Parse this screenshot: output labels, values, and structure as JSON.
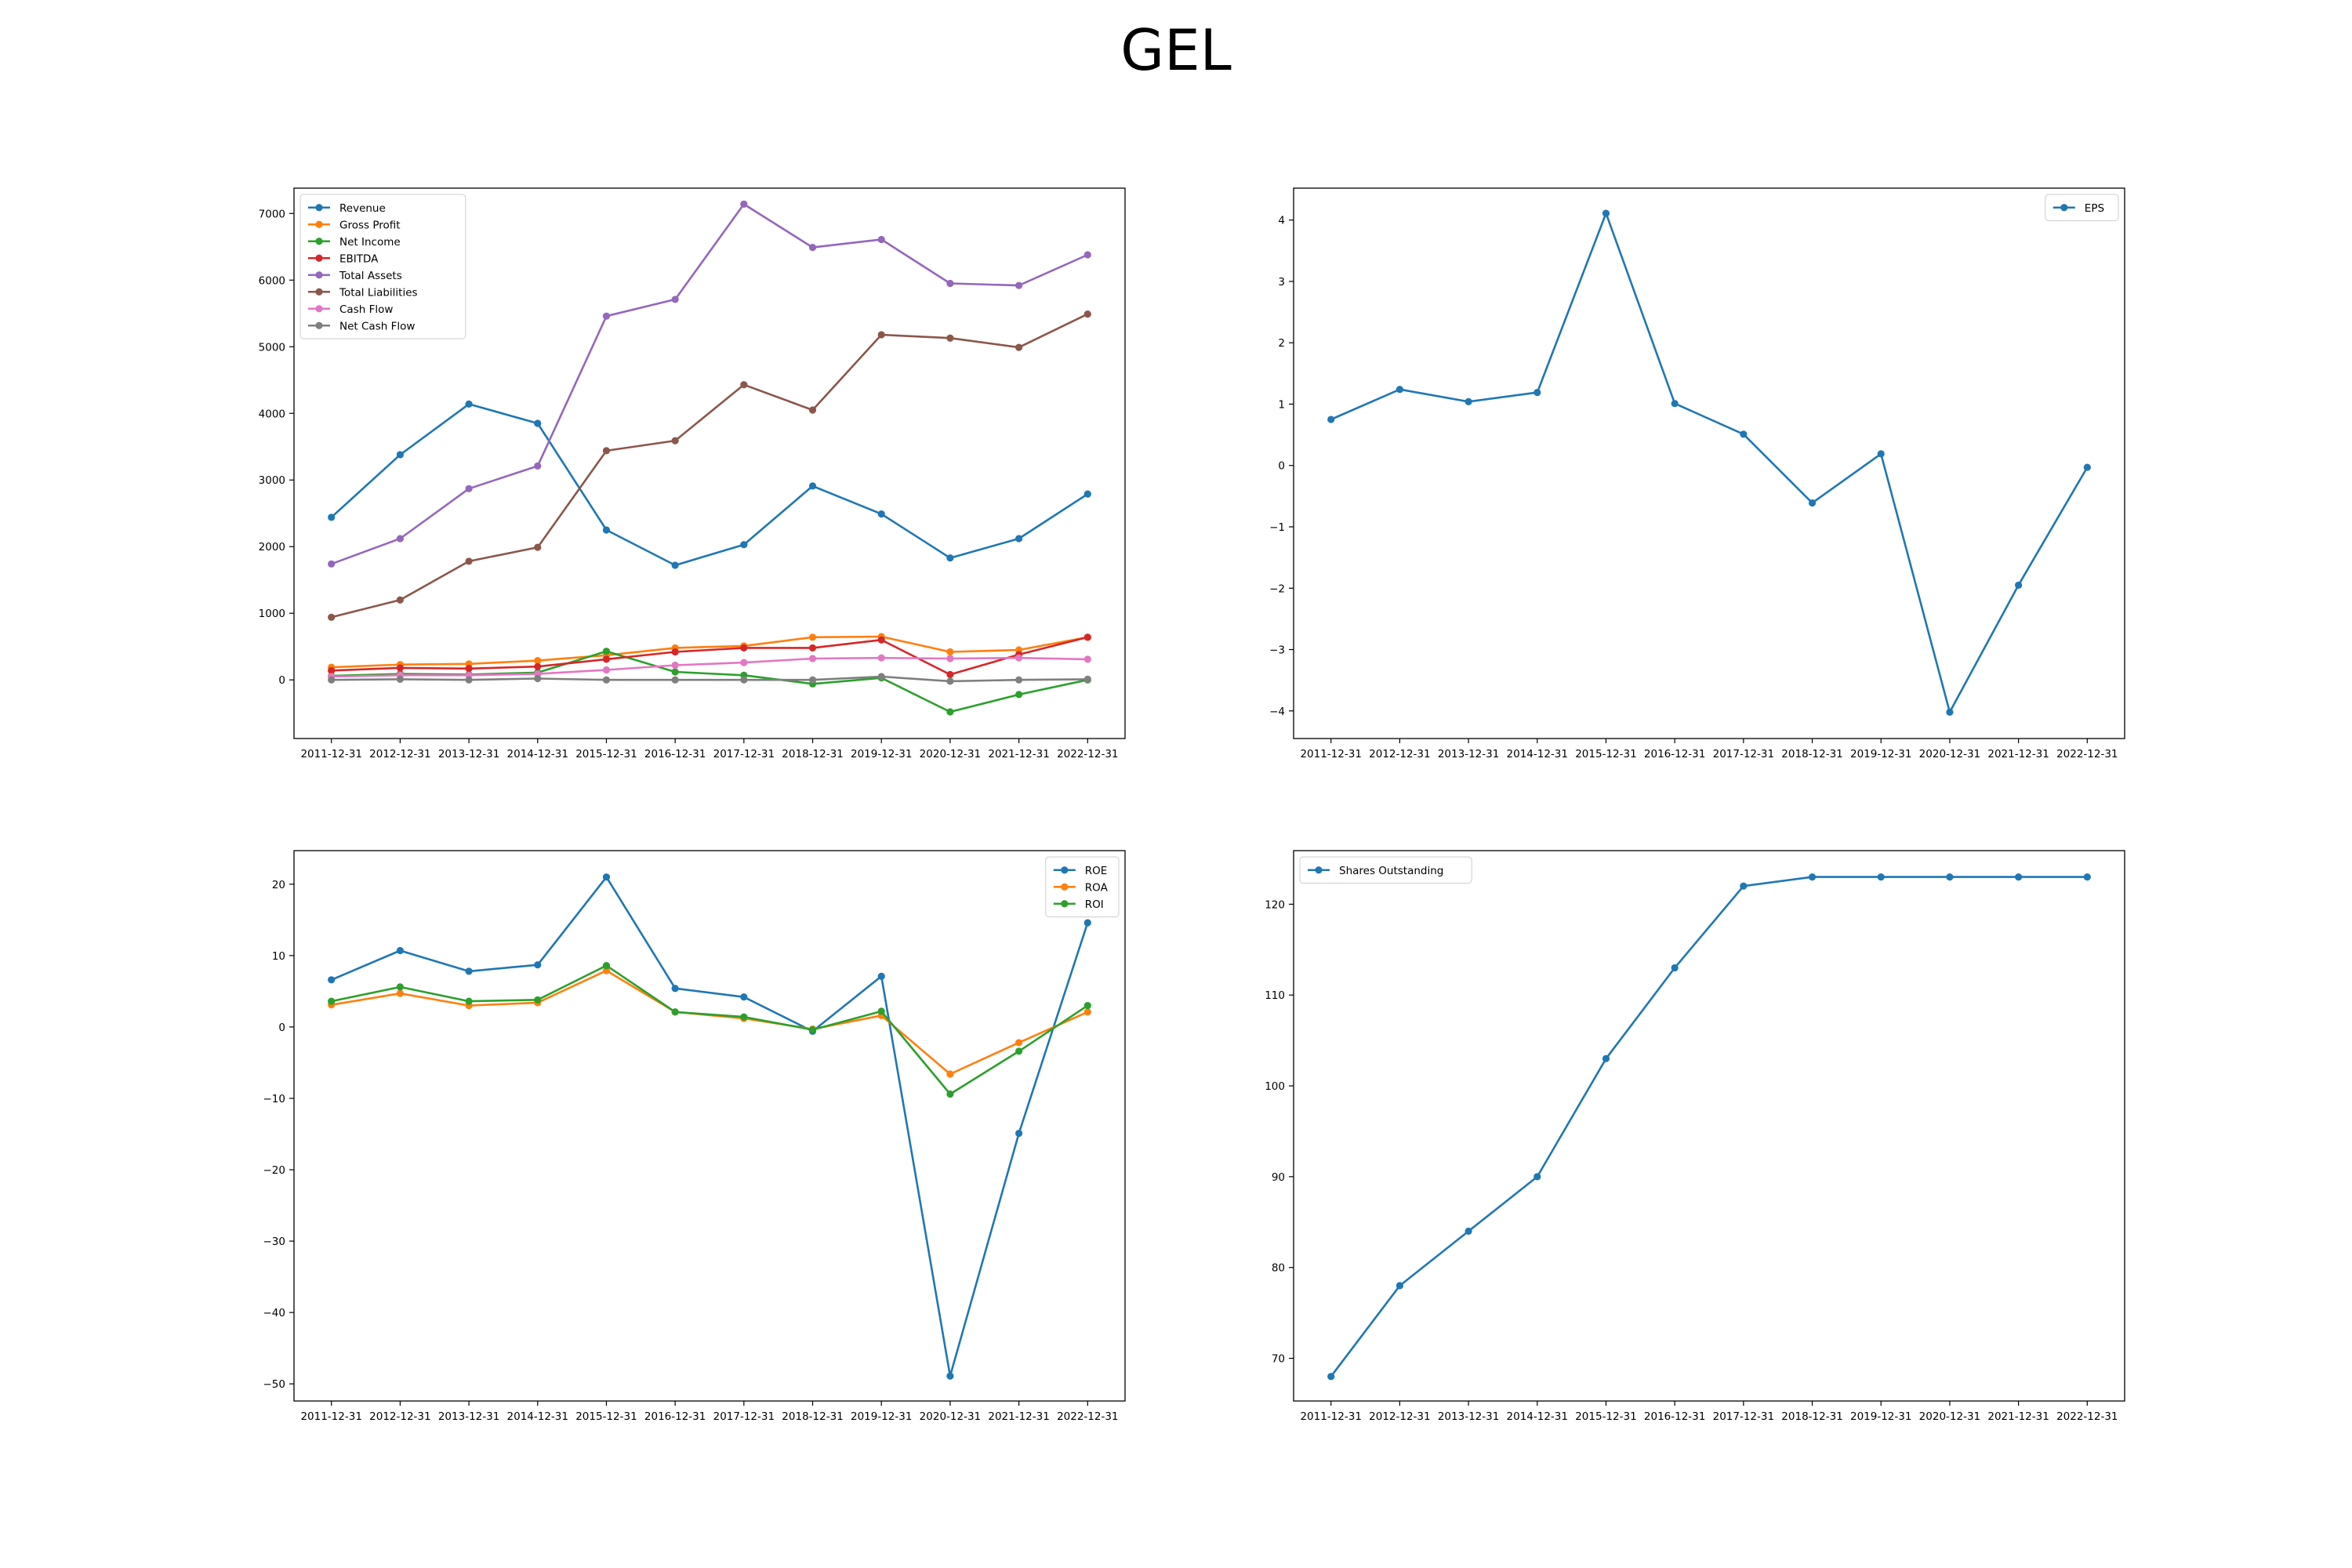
{
  "title": "GEL",
  "colors": {
    "blue": "#1f77b4",
    "orange": "#ff7f0e",
    "green": "#2ca02c",
    "red": "#d62728",
    "purple": "#9467bd",
    "brown": "#8c564b",
    "pink": "#e377c2",
    "gray": "#7f7f7f"
  },
  "chart_data": [
    {
      "type": "line",
      "categories": [
        "2011-12-31",
        "2012-12-31",
        "2013-12-31",
        "2014-12-31",
        "2015-12-31",
        "2016-12-31",
        "2017-12-31",
        "2018-12-31",
        "2019-12-31",
        "2020-12-31",
        "2021-12-31",
        "2022-12-31"
      ],
      "ylim": [
        -880,
        7380
      ],
      "yticks": [
        0,
        1000,
        2000,
        3000,
        4000,
        5000,
        6000,
        7000
      ],
      "legend_position": "upper left",
      "series": [
        {
          "name": "Revenue",
          "color": "#1f77b4",
          "values": [
            2440,
            3380,
            4140,
            3850,
            2250,
            1720,
            2030,
            2910,
            2490,
            1830,
            2120,
            2790
          ]
        },
        {
          "name": "Gross Profit",
          "color": "#ff7f0e",
          "values": [
            190,
            230,
            240,
            290,
            370,
            480,
            510,
            640,
            650,
            420,
            450,
            640
          ]
        },
        {
          "name": "Net Income",
          "color": "#2ca02c",
          "values": [
            60,
            90,
            80,
            110,
            430,
            120,
            70,
            -60,
            30,
            -480,
            -220,
            0
          ]
        },
        {
          "name": "EBITDA",
          "color": "#d62728",
          "values": [
            140,
            180,
            170,
            200,
            310,
            420,
            480,
            480,
            600,
            80,
            380,
            640
          ]
        },
        {
          "name": "Total Assets",
          "color": "#9467bd",
          "values": [
            1740,
            2120,
            2870,
            3210,
            5460,
            5710,
            7140,
            6490,
            6610,
            5950,
            5920,
            6380
          ]
        },
        {
          "name": "Total Liabilities",
          "color": "#8c564b",
          "values": [
            940,
            1200,
            1780,
            1990,
            3440,
            3590,
            4430,
            4050,
            5180,
            5130,
            4990,
            5490
          ]
        },
        {
          "name": "Cash Flow",
          "color": "#e377c2",
          "values": [
            50,
            70,
            70,
            90,
            150,
            220,
            260,
            320,
            330,
            320,
            330,
            310
          ]
        },
        {
          "name": "Net Cash Flow",
          "color": "#7f7f7f",
          "values": [
            0,
            10,
            0,
            20,
            0,
            0,
            0,
            0,
            50,
            -20,
            0,
            10
          ]
        }
      ]
    },
    {
      "type": "line",
      "categories": [
        "2011-12-31",
        "2012-12-31",
        "2013-12-31",
        "2014-12-31",
        "2015-12-31",
        "2016-12-31",
        "2017-12-31",
        "2018-12-31",
        "2019-12-31",
        "2020-12-31",
        "2021-12-31",
        "2022-12-31"
      ],
      "ylim": [
        -4.45,
        4.52
      ],
      "yticks": [
        -4,
        -3,
        -2,
        -1,
        0,
        1,
        2,
        3,
        4
      ],
      "legend_position": "upper right",
      "series": [
        {
          "name": "EPS",
          "color": "#1f77b4",
          "values": [
            0.75,
            1.24,
            1.04,
            1.19,
            4.11,
            1.01,
            0.51,
            -0.61,
            0.19,
            -4.02,
            -1.95,
            -0.03
          ]
        }
      ]
    },
    {
      "type": "line",
      "categories": [
        "2011-12-31",
        "2012-12-31",
        "2013-12-31",
        "2014-12-31",
        "2015-12-31",
        "2016-12-31",
        "2017-12-31",
        "2018-12-31",
        "2019-12-31",
        "2020-12-31",
        "2021-12-31",
        "2022-12-31"
      ],
      "ylim": [
        -52.4,
        24.7
      ],
      "yticks": [
        -50,
        -40,
        -30,
        -20,
        -10,
        0,
        10,
        20
      ],
      "legend_position": "upper right",
      "series": [
        {
          "name": "ROE",
          "color": "#1f77b4",
          "values": [
            6.6,
            10.7,
            7.8,
            8.7,
            21.0,
            5.4,
            4.2,
            -0.6,
            7.1,
            -48.9,
            -14.9,
            14.6
          ]
        },
        {
          "name": "ROA",
          "color": "#ff7f0e",
          "values": [
            3.1,
            4.7,
            3.0,
            3.4,
            7.9,
            2.1,
            1.2,
            -0.3,
            1.6,
            -6.6,
            -2.2,
            2.1
          ]
        },
        {
          "name": "ROI",
          "color": "#2ca02c",
          "values": [
            3.6,
            5.6,
            3.6,
            3.8,
            8.6,
            2.1,
            1.4,
            -0.4,
            2.2,
            -9.4,
            -3.4,
            3.0
          ]
        }
      ]
    },
    {
      "type": "line",
      "categories": [
        "2011-12-31",
        "2012-12-31",
        "2013-12-31",
        "2014-12-31",
        "2015-12-31",
        "2016-12-31",
        "2017-12-31",
        "2018-12-31",
        "2019-12-31",
        "2020-12-31",
        "2021-12-31",
        "2022-12-31"
      ],
      "ylim": [
        65.3,
        125.9
      ],
      "yticks": [
        70,
        80,
        90,
        100,
        110,
        120
      ],
      "legend_position": "upper left",
      "series": [
        {
          "name": "Shares Outstanding",
          "color": "#1f77b4",
          "values": [
            68,
            78,
            84,
            90,
            103,
            113,
            122,
            123,
            123,
            123,
            123,
            123
          ]
        }
      ]
    }
  ]
}
